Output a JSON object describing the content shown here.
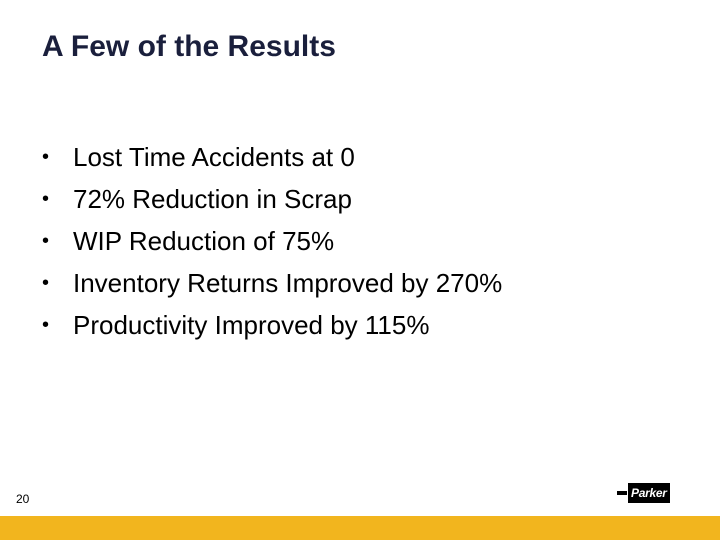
{
  "slide": {
    "title": "A Few of the Results",
    "bullets": [
      "Lost Time Accidents at 0",
      "72% Reduction in Scrap",
      "WIP Reduction of 75%",
      "Inventory Returns Improved by 270%",
      "Productivity Improved by 115%"
    ],
    "bullet_symbol": "•",
    "page_number": "20"
  },
  "logo": {
    "text": "Parker"
  },
  "colors": {
    "title": "#1a1f3c",
    "footer_bar": "#f2b51e"
  }
}
